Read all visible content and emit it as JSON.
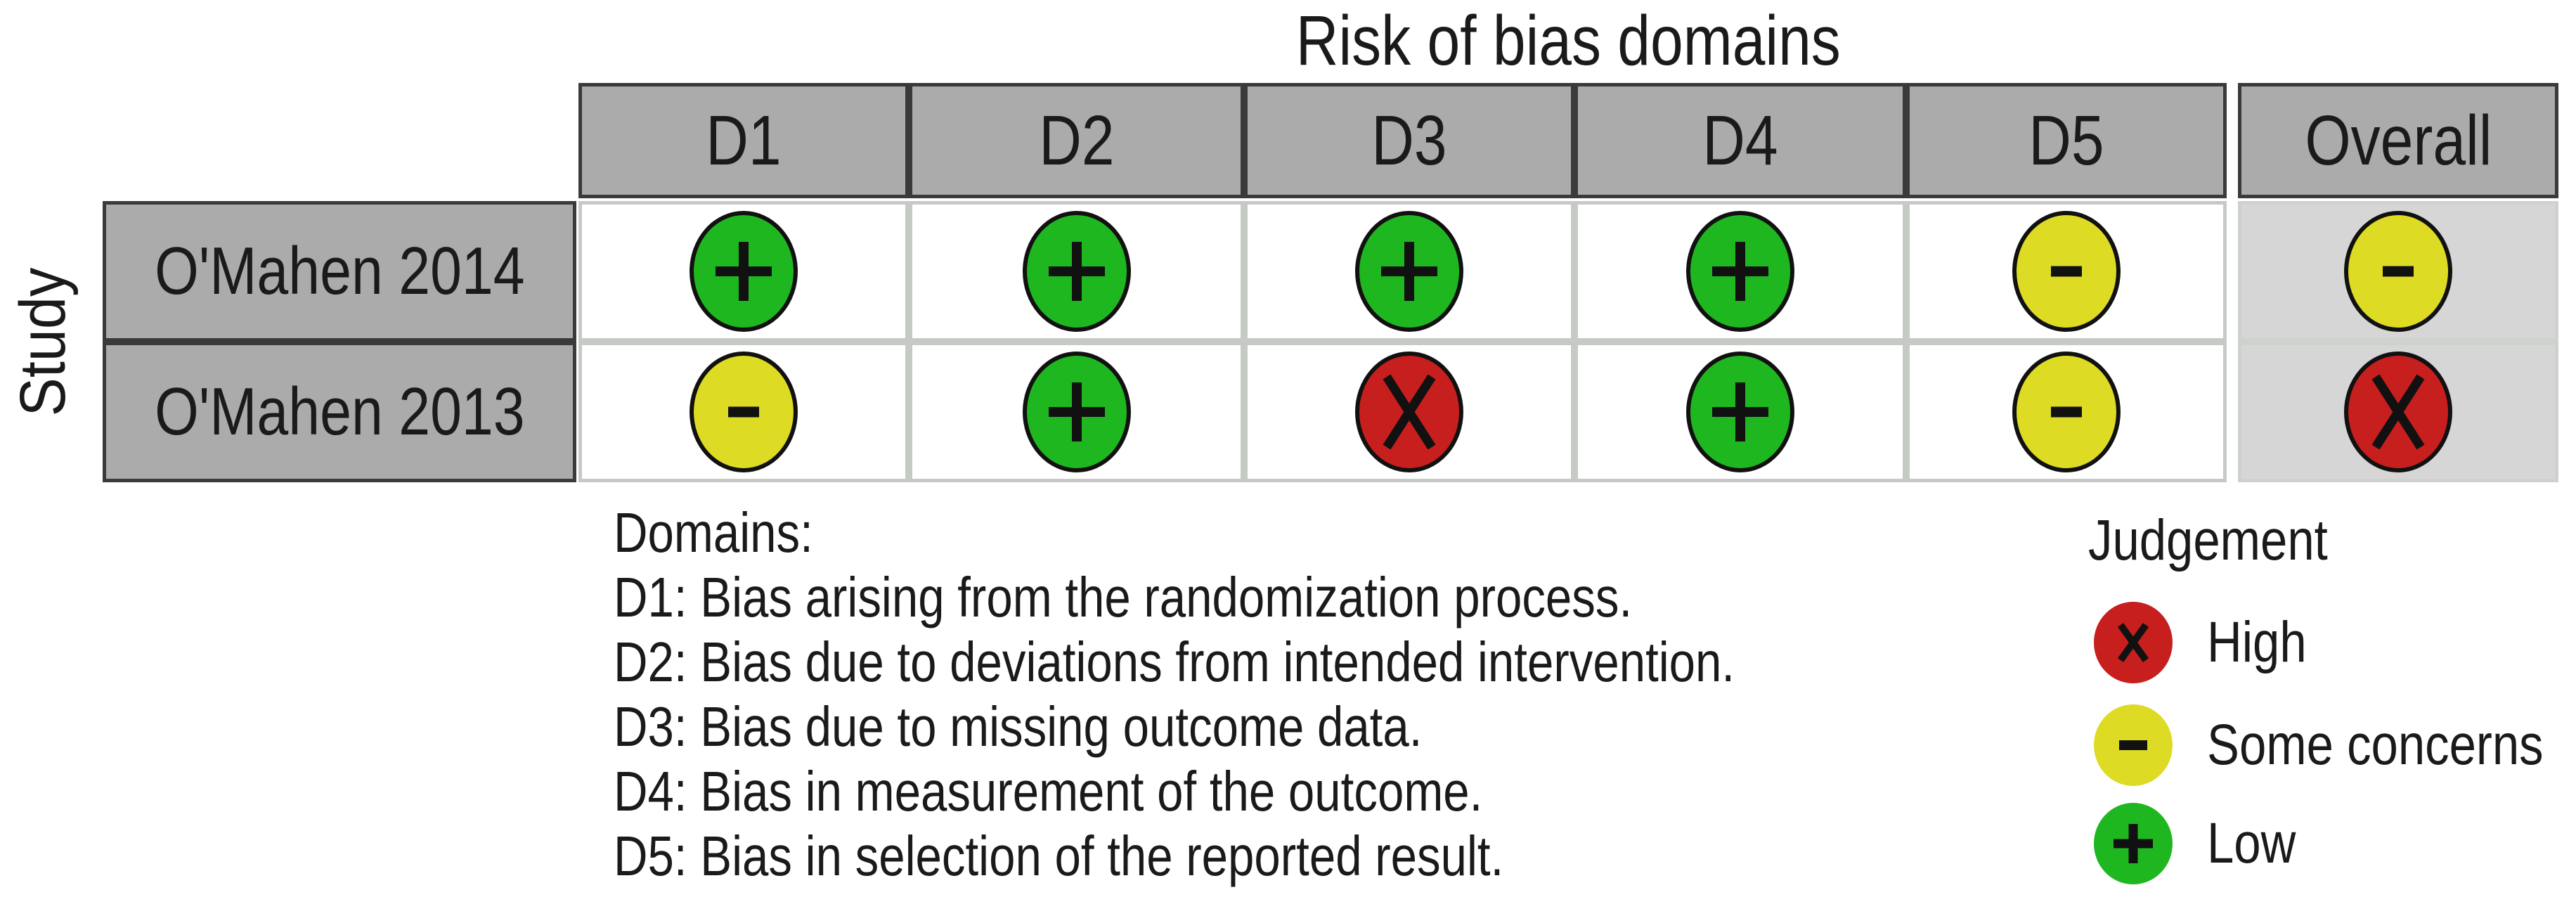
{
  "figure": {
    "title": "Risk of bias domains",
    "y_axis_label": "Study",
    "columns": [
      "D1",
      "D2",
      "D3",
      "D4",
      "D5",
      "Overall"
    ],
    "rows": [
      {
        "study": "O'Mahen 2014",
        "judgements": [
          "low",
          "low",
          "low",
          "low",
          "some_concerns",
          "some_concerns"
        ]
      },
      {
        "study": "O'Mahen 2013",
        "judgements": [
          "some_concerns",
          "low",
          "high",
          "low",
          "some_concerns",
          "high"
        ]
      }
    ]
  },
  "footnote": {
    "heading": "Domains:",
    "lines": [
      "D1: Bias arising from the randomization process.",
      "D2: Bias due to deviations from intended intervention.",
      "D3: Bias due to missing outcome data.",
      "D4: Bias in measurement of the outcome.",
      "D5: Bias in selection of the reported result."
    ]
  },
  "legend": {
    "title": "Judgement",
    "items": [
      {
        "key": "high",
        "symbol": "x",
        "label": "High"
      },
      {
        "key": "some_concerns",
        "symbol": "minus",
        "label": "Some concerns"
      },
      {
        "key": "low",
        "symbol": "plus",
        "label": "Low"
      }
    ]
  },
  "colors": {
    "low": "#1FB71F",
    "some_concerns": "#DEDB24",
    "high": "#C71E1E",
    "header_bg": "#ABABAB",
    "row_label_bg": "#ABABAB",
    "overall_cell_bg": "#D6D6D6",
    "dark_border": "#3A3A3A",
    "cell_border": "#C5CAC5",
    "symbol": "#111111",
    "background": "#FFFFFF",
    "text": "#1A1A1A"
  },
  "chart_data": {
    "type": "table",
    "title": "Risk of bias domains",
    "y_label": "Study",
    "columns": [
      "D1",
      "D2",
      "D3",
      "D4",
      "D5",
      "Overall"
    ],
    "rows": [
      {
        "study": "O'Mahen 2014",
        "judgements": [
          "Low",
          "Low",
          "Low",
          "Low",
          "Some concerns",
          "Some concerns"
        ]
      },
      {
        "study": "O'Mahen 2013",
        "judgements": [
          "Some concerns",
          "Low",
          "High",
          "Low",
          "Some concerns",
          "High"
        ]
      }
    ],
    "domain_definitions": [
      "D1: Bias arising from the randomization process.",
      "D2: Bias due to deviations from intended intervention.",
      "D3: Bias due to missing outcome data.",
      "D4: Bias in measurement of the outcome.",
      "D5: Bias in selection of the reported result."
    ],
    "legend": {
      "High": {
        "color": "#C71E1E",
        "symbol": "x"
      },
      "Some concerns": {
        "color": "#DEDB24",
        "symbol": "-"
      },
      "Low": {
        "color": "#1FB71F",
        "symbol": "+"
      }
    },
    "legend_position": "bottom-right",
    "grid": false
  }
}
